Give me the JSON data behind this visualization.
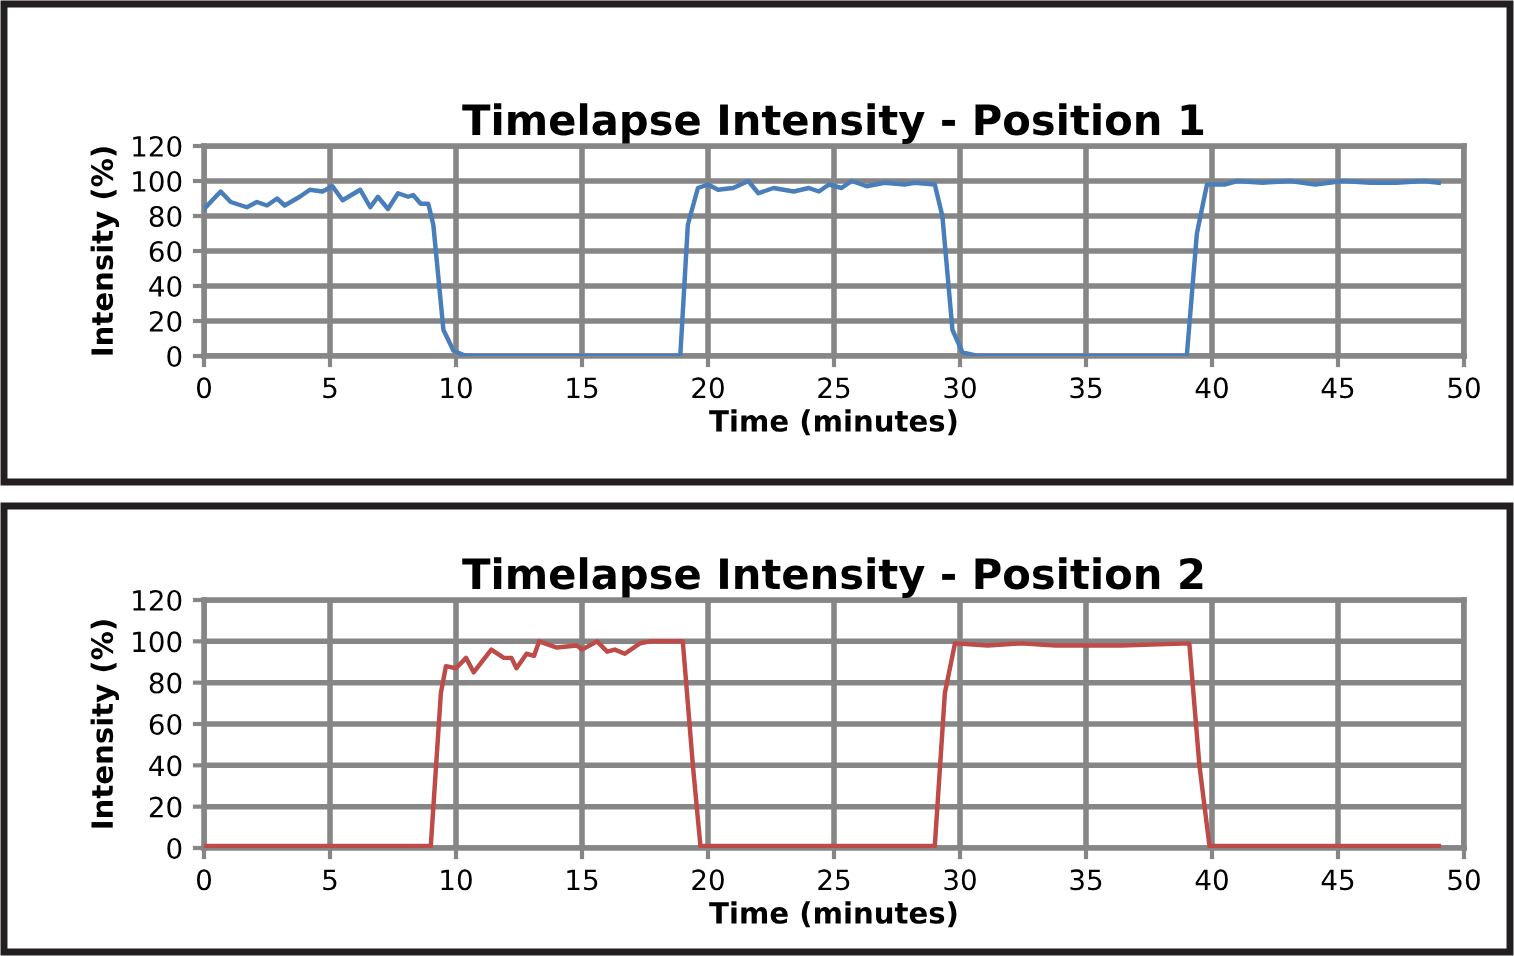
{
  "chart_data": [
    {
      "type": "line",
      "title": "Timelapse Intensity - Position 1",
      "xlabel": "Time (minutes)",
      "ylabel": "Intensity (%)",
      "xlim": [
        0,
        50
      ],
      "ylim": [
        0,
        120
      ],
      "xticks": [
        0,
        5,
        10,
        15,
        20,
        25,
        30,
        35,
        40,
        45,
        50
      ],
      "yticks": [
        0,
        20,
        40,
        60,
        80,
        100,
        120
      ],
      "grid": true,
      "legend": false,
      "marker": "none",
      "line_style": "solid",
      "series": [
        {
          "color": "#4a7ebb",
          "x": [
            0,
            0.66,
            1.06,
            1.7,
            2.1,
            2.5,
            2.9,
            3.2,
            3.8,
            4.2,
            4.7,
            5.1,
            5.5,
            6.2,
            6.6,
            6.9,
            7.3,
            7.7,
            8.1,
            8.3,
            8.6,
            8.9,
            9.1,
            9.5,
            9.9,
            10.4,
            18.9,
            19.2,
            19.6,
            20,
            20.4,
            21,
            21.6,
            22,
            22.6,
            23.4,
            24,
            24.4,
            24.8,
            25.3,
            25.7,
            26.3,
            27,
            27.8,
            28.2,
            29,
            29.3,
            29.7,
            30.1,
            30.7,
            39.0,
            39.4,
            39.8,
            40.5,
            41,
            42,
            43.1,
            44.1,
            45.2,
            46.3,
            47.3,
            48.4,
            49
          ],
          "values": [
            84,
            94,
            88,
            85,
            88,
            86,
            90,
            86,
            91,
            95,
            94,
            97,
            89,
            95,
            85,
            91,
            84,
            93,
            91,
            92,
            87,
            87,
            75,
            15,
            3,
            0,
            0,
            75,
            96,
            98,
            95,
            96,
            100,
            93,
            96,
            94,
            96,
            94,
            98,
            96,
            100,
            97,
            99,
            98,
            99,
            98,
            80,
            15,
            2,
            0,
            0,
            70,
            98,
            98,
            100,
            99,
            100,
            98,
            100,
            99,
            99,
            100,
            99
          ]
        }
      ]
    },
    {
      "type": "line",
      "title": "Timelapse Intensity - Position 2",
      "xlabel": "Time (minutes)",
      "ylabel": "Intensity (%)",
      "xlim": [
        0,
        50
      ],
      "ylim": [
        0,
        120
      ],
      "xticks": [
        0,
        5,
        10,
        15,
        20,
        25,
        30,
        35,
        40,
        45,
        50
      ],
      "yticks": [
        0,
        20,
        40,
        60,
        80,
        100,
        120
      ],
      "grid": true,
      "legend": false,
      "marker": "none",
      "line_style": "solid",
      "series": [
        {
          "color": "#be4b48",
          "x": [
            0,
            9.0,
            9.4,
            9.6,
            10.0,
            10.4,
            10.7,
            11.4,
            11.9,
            12.2,
            12.4,
            12.8,
            13.1,
            13.3,
            14,
            14.8,
            15,
            15.6,
            16,
            16.3,
            16.7,
            17.3,
            17.7,
            19.0,
            19.4,
            19.7,
            29.0,
            29.4,
            29.8,
            31.1,
            32.4,
            33.8,
            36.4,
            39.1,
            39.5,
            39.9,
            49
          ],
          "values": [
            1,
            1,
            75,
            88,
            87,
            92,
            85,
            96,
            92,
            92,
            87,
            94,
            93,
            100,
            97,
            98,
            96,
            100,
            95,
            96,
            94,
            99,
            100,
            100,
            40,
            1,
            1,
            75,
            99,
            98,
            99,
            98,
            98,
            99,
            40,
            1,
            1
          ]
        }
      ]
    }
  ]
}
